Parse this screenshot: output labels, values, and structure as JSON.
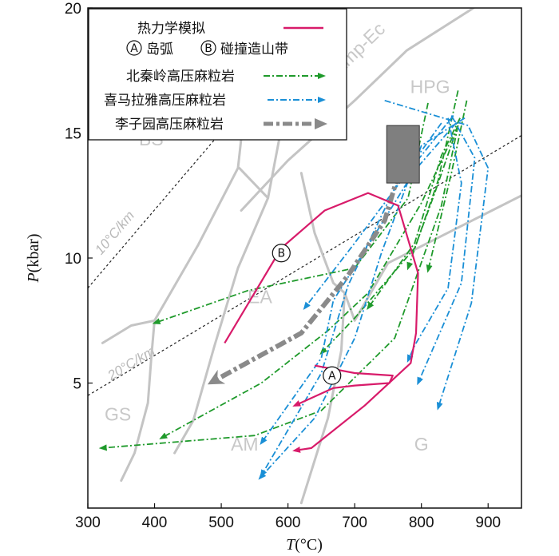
{
  "chart_data": {
    "type": "line",
    "title": "",
    "xlabel_italic": "T",
    "xlabel_unit": "(°C)",
    "ylabel_italic": "P",
    "ylabel_unit": "(kbar)",
    "xlim": [
      300,
      950
    ],
    "ylim": [
      0,
      20
    ],
    "xticks": [
      300,
      400,
      500,
      600,
      700,
      800,
      900
    ],
    "yticks": [
      5,
      10,
      15,
      20
    ],
    "field_labels": [
      {
        "name": "field-bs",
        "text": "BS",
        "x": 395,
        "y": 14.5
      },
      {
        "name": "field-ea",
        "text": "EA",
        "x": 558,
        "y": 8.2
      },
      {
        "name": "field-gs",
        "text": "GS",
        "x": 345,
        "y": 3.5
      },
      {
        "name": "field-am",
        "text": "AM",
        "x": 535,
        "y": 2.3
      },
      {
        "name": "field-g",
        "text": "G",
        "x": 800,
        "y": 2.3
      },
      {
        "name": "field-hpg",
        "text": "HPG",
        "x": 813,
        "y": 16.6
      },
      {
        "name": "field-amp-ec",
        "text": "Amp-Ec",
        "x": 712,
        "y": 18.2
      }
    ],
    "geotherms": [
      {
        "name": "geotherm-10",
        "label": "10°C/km",
        "points": [
          [
            300,
            8.8
          ],
          [
            620,
            18.8
          ]
        ],
        "label_pos": [
          320,
          10.1
        ]
      },
      {
        "name": "geotherm-20",
        "label": "20°C/km",
        "points": [
          [
            300,
            4.5
          ],
          [
            950,
            14.9
          ]
        ],
        "label_pos": [
          335,
          5.1
        ]
      }
    ],
    "facies_boundaries": [
      {
        "name": "boundary-ampec-hpg",
        "points": [
          [
            530,
            11.9
          ],
          [
            600,
            13.9
          ],
          [
            700,
            16.3
          ],
          [
            778,
            18.3
          ],
          [
            878,
            20
          ]
        ]
      },
      {
        "name": "boundary-bs-ea",
        "points": [
          [
            322,
            6.6
          ],
          [
            365,
            7.3
          ],
          [
            400,
            7.5
          ],
          [
            465,
            10.5
          ],
          [
            525,
            13.6
          ],
          [
            533,
            15.5
          ]
        ]
      },
      {
        "name": "boundary-ea-internal",
        "points": [
          [
            527,
            13.6
          ],
          [
            570,
            12.4
          ],
          [
            590,
            15.2
          ]
        ]
      },
      {
        "name": "boundary-ea-am",
        "points": [
          [
            570,
            12.4
          ],
          [
            525,
            9.6
          ],
          [
            490,
            6.5
          ],
          [
            458,
            3.5
          ],
          [
            430,
            2.2
          ]
        ]
      },
      {
        "name": "boundary-gs-ea",
        "points": [
          [
            400,
            7.5
          ],
          [
            395,
            6.0
          ],
          [
            390,
            4.2
          ],
          [
            370,
            2.2
          ],
          [
            350,
            1.1
          ]
        ]
      },
      {
        "name": "boundary-ea-hpg",
        "points": [
          [
            620,
            13.4
          ],
          [
            640,
            11.0
          ],
          [
            668,
            9.0
          ],
          [
            685,
            8.6
          ],
          [
            700,
            7.5
          ],
          [
            750,
            9.8
          ],
          [
            950,
            12.5
          ]
        ]
      },
      {
        "name": "boundary-am-g",
        "points": [
          [
            685,
            8.6
          ],
          [
            680,
            6.3
          ],
          [
            660,
            3.6
          ],
          [
            640,
            1.9
          ],
          [
            620,
            0.2
          ]
        ]
      }
    ],
    "series": [
      {
        "name": "北秦岭高压麻粒岩",
        "style": "green",
        "color": "#1f9a2b",
        "dash": "8 3 2 3",
        "paths": [
          [
            [
              810,
              16.2
            ],
            [
              780,
              12.4
            ],
            [
              700,
              9.6
            ],
            [
              540,
              8.7
            ],
            [
              400,
              7.4
            ]
          ],
          [
            [
              855,
              15.3
            ],
            [
              830,
              12.1
            ],
            [
              760,
              6.8
            ],
            [
              650,
              3.9
            ],
            [
              550,
              2.9
            ],
            [
              320,
              2.4
            ]
          ],
          [
            [
              855,
              15.3
            ],
            [
              800,
              12.2
            ],
            [
              720,
              8.6
            ],
            [
              660,
              7.1
            ],
            [
              560,
              5.0
            ],
            [
              410,
              2.8
            ]
          ],
          [
            [
              855,
              15.3
            ],
            [
              820,
              12.6
            ],
            [
              790,
              10.4
            ],
            [
              700,
              7.6
            ],
            [
              650,
              6.2
            ]
          ],
          [
            [
              858,
              15.6
            ],
            [
              830,
              14.1
            ],
            [
              790,
              10.6
            ],
            [
              720,
              8.0
            ]
          ],
          [
            [
              868,
              16.3
            ],
            [
              845,
              13.4
            ],
            [
              810,
              9.5
            ]
          ],
          [
            [
              855,
              16.7
            ],
            [
              825,
              13.1
            ],
            [
              780,
              9.6
            ]
          ]
        ]
      },
      {
        "name": "喜马拉雅高压麻粒岩",
        "style": "blue",
        "color": "#1a8fd6",
        "dash": "8 3 2 3",
        "paths": [
          [
            [
              745,
              16.3
            ],
            [
              870,
              15.3
            ],
            [
              900,
              13.6
            ],
            [
              875,
              8.2
            ],
            [
              825,
              4.0
            ]
          ],
          [
            [
              845,
              15.7
            ],
            [
              880,
              14.0
            ],
            [
              860,
              9.0
            ],
            [
              795,
              5.0
            ]
          ],
          [
            [
              840,
              15.6
            ],
            [
              860,
              13.0
            ],
            [
              840,
              8.8
            ],
            [
              790,
              6.5
            ],
            [
              780,
              5.9
            ]
          ],
          [
            [
              865,
              15.6
            ],
            [
              800,
              14.5
            ],
            [
              740,
              10.2
            ],
            [
              700,
              6.8
            ],
            [
              640,
              3.6
            ],
            [
              558,
              1.2
            ]
          ],
          [
            [
              830,
              15.4
            ],
            [
              760,
              12.8
            ],
            [
              690,
              8.9
            ],
            [
              650,
              5.4
            ],
            [
              560,
              1.3
            ]
          ],
          [
            [
              852,
              15.4
            ],
            [
              790,
              13.5
            ],
            [
              720,
              10.5
            ],
            [
              668,
              8.3
            ],
            [
              650,
              6.0
            ],
            [
              560,
              2.6
            ]
          ],
          [
            [
              848,
              15.7
            ],
            [
              770,
              13.1
            ],
            [
              700,
              10.6
            ],
            [
              625,
              8.0
            ]
          ]
        ]
      },
      {
        "name": "李子园高压麻粒岩",
        "style": "gray",
        "color": "#8a8a8a",
        "dash": "14 4 4 4",
        "paths": [
          [
            [
              775,
              14.2
            ],
            [
              745,
              11.5
            ],
            [
              690,
              9.3
            ],
            [
              620,
              7.0
            ],
            [
              490,
              5.1
            ]
          ]
        ]
      },
      {
        "name": "pt-path-b",
        "style": "pink",
        "color": "#d81b6a",
        "dash": "",
        "paths": [
          [
            [
              505,
              6.6
            ],
            [
              590,
              10.4
            ],
            [
              655,
              11.9
            ],
            [
              720,
              12.6
            ],
            [
              765,
              12.1
            ],
            [
              795,
              9.4
            ],
            [
              792,
              7.0
            ],
            [
              784,
              5.8
            ],
            [
              715,
              4.1
            ],
            [
              635,
              2.4
            ],
            [
              610,
              2.3
            ]
          ]
        ]
      },
      {
        "name": "pt-path-a",
        "style": "pink",
        "color": "#d81b6a",
        "dash": "",
        "paths": [
          [
            [
              640,
              5.7
            ],
            [
              700,
              5.4
            ],
            [
              757,
              5.3
            ],
            [
              752,
              5.0
            ],
            [
              700,
              4.9
            ],
            [
              668,
              4.8
            ],
            [
              610,
              4.1
            ]
          ]
        ]
      }
    ],
    "rect_box": {
      "name": "lizi-yuan-box",
      "x0": 748,
      "x1": 797,
      "y0": 13.0,
      "y1": 15.3,
      "color": "#7f7f7f"
    },
    "circle_markers": [
      {
        "name": "circle-marker-b",
        "text": "B",
        "x": 590,
        "y": 10.2
      },
      {
        "name": "circle-marker-a",
        "text": "A",
        "x": 666,
        "y": 5.3
      }
    ],
    "legend": {
      "row1_text": "热力学模拟",
      "row2_a": "A",
      "row2_a_text": "岛弧",
      "row2_b": "B",
      "row2_b_text": "碰撞造山带",
      "row3_text": "北秦岭高压麻粒岩",
      "row4_text": "喜马拉雅高压麻粒岩",
      "row5_text": "李子园高压麻粒岩"
    }
  }
}
